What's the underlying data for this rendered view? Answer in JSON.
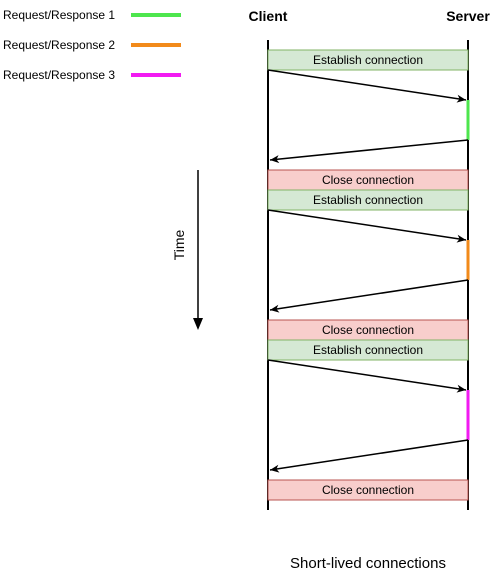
{
  "legend": [
    {
      "label": "Request/Response 1",
      "color": "#4de64d"
    },
    {
      "label": "Request/Response 2",
      "color": "#f28a1a"
    },
    {
      "label": "Request/Response 3",
      "color": "#f21af2"
    }
  ],
  "headers": {
    "client": "Client",
    "server": "Server"
  },
  "bars": {
    "establish": {
      "label": "Establish connection",
      "fill": "#d5e8d4",
      "stroke": "#82b366"
    },
    "close": {
      "label": "Close connection",
      "fill": "#f8cecc",
      "stroke": "#b85450"
    }
  },
  "time_label": "Time",
  "caption": "Short-lived connections"
}
